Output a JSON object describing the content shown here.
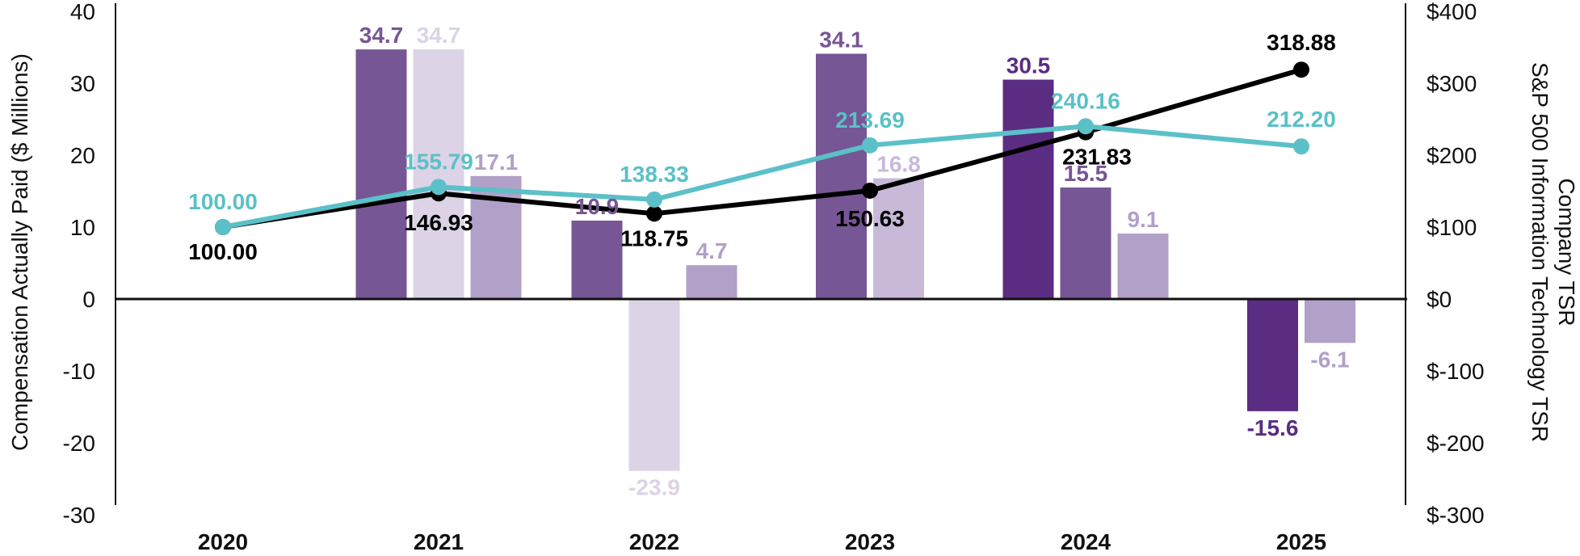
{
  "chart_data": {
    "type": "bar",
    "categories": [
      "2020",
      "2021",
      "2022",
      "2023",
      "2024",
      "2025"
    ],
    "ylabel_left": "Compensation Actually Paid ($ Millions)",
    "ylabel_right_1": "Company TSR",
    "ylabel_right_2": "S&P 500 Information Technology TSR",
    "ylim_left": [
      -30,
      40
    ],
    "yticks_left": [
      40,
      30,
      20,
      10,
      0,
      -10,
      -20,
      -30
    ],
    "ytick_labels_left": [
      "40",
      "30",
      "20",
      "10",
      "0",
      "-10",
      "-20",
      "-30"
    ],
    "ylim_right": [
      -300,
      400
    ],
    "ytick_labels_right": [
      "$400",
      "$300",
      "$200",
      "$100",
      "$0",
      "$-100",
      "$-200",
      "$-300"
    ],
    "bar_groups": [
      {
        "category": "2021",
        "bars": [
          {
            "value": 34.7,
            "label": "34.7",
            "color": "#765694"
          },
          {
            "value": 34.7,
            "label": "34.7",
            "color": "#dcd3e6"
          },
          {
            "value": 17.1,
            "label": "17.1",
            "color": "#b1a0c8"
          }
        ]
      },
      {
        "category": "2022",
        "bars": [
          {
            "value": 10.9,
            "label": "10.9",
            "color": "#765694"
          },
          {
            "value": -23.9,
            "label": "-23.9",
            "color": "#dcd3e6"
          },
          {
            "value": 4.7,
            "label": "4.7",
            "color": "#b1a0c8"
          }
        ]
      },
      {
        "category": "2023",
        "bars": [
          {
            "value": 34.1,
            "label": "34.1",
            "color": "#765694"
          },
          {
            "value": 16.8,
            "label": "16.8",
            "color": "#c8b9d9"
          }
        ]
      },
      {
        "category": "2024",
        "bars": [
          {
            "value": 30.5,
            "label": "30.5",
            "color": "#5a2c82"
          },
          {
            "value": 15.5,
            "label": "15.5",
            "color": "#765694"
          },
          {
            "value": 9.1,
            "label": "9.1",
            "color": "#b1a0c8"
          }
        ]
      },
      {
        "category": "2025",
        "bars": [
          {
            "value": -15.6,
            "label": "-15.6",
            "color": "#5a2c82"
          },
          {
            "value": -6.1,
            "label": "-6.1",
            "color": "#b1a0c8"
          }
        ]
      }
    ],
    "lines": [
      {
        "values": [
          100.0,
          146.93,
          118.75,
          150.63,
          231.83,
          318.88
        ],
        "labels": [
          "100.00",
          "146.93",
          "118.75",
          "150.63",
          "231.83",
          "318.88"
        ],
        "color": "#000000"
      },
      {
        "values": [
          100.0,
          155.79,
          138.33,
          213.69,
          240.16,
          212.2
        ],
        "labels": [
          "100.00",
          "155.79",
          "138.33",
          "213.69",
          "240.16",
          "212.20"
        ],
        "color": "#5bc0c8"
      }
    ]
  }
}
